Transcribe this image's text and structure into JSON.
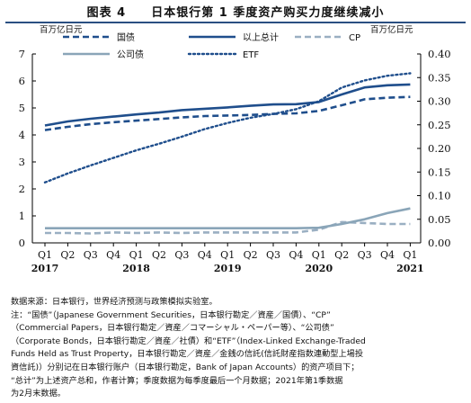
{
  "title": "图表 4　　日本银行第 1 季度资产购买力度继续减小",
  "notes": "数据来源：日本银行，世界经济预测与政策模拟实验室。\n注：“国债”（Japanese Government Securities，日本银行勘定／資産／国債）、“CP”\n（Commercial Papers，日本银行勘定／資産／コマーシャル・ペーパー等）、“公司债”\n（Corporate Bonds，日本银行勘定／資産／社債）和“ETF”（Index-Linked Exchange-Traded\nFunds Held as Trust Property，日本银行勘定／資産／金銭の信託(信託財産指数連動型上場投\n資信託)）分别记在日本银行账户（日本银行勘定，Bank of Japan Accounts）的资产项目下；\n“总计”为上述资产总和，作者计算；季度数据为每季度最后一个月数据；2021年第1季数据\n为2月末数据。",
  "chart_data": {
    "type": "line",
    "left_unit": "百万亿日元",
    "right_unit": "百万亿日元",
    "y_left": {
      "lim": [
        0,
        7
      ],
      "ticks": [
        0,
        1,
        2,
        3,
        4,
        5,
        6,
        7
      ]
    },
    "y_right": {
      "lim": [
        0,
        0.4
      ],
      "ticks": [
        "0.00",
        "0.05",
        "0.10",
        "0.15",
        "0.20",
        "0.25",
        "0.30",
        "0.35",
        "0.40"
      ]
    },
    "categories": [
      "Q1",
      "Q2",
      "Q3",
      "Q4",
      "Q1",
      "Q2",
      "Q3",
      "Q4",
      "Q1",
      "Q2",
      "Q3",
      "Q4",
      "Q1",
      "Q2",
      "Q3",
      "Q4",
      "Q1"
    ],
    "years": [
      {
        "label": "2017",
        "index": 0
      },
      {
        "label": "2018",
        "index": 4
      },
      {
        "label": "2019",
        "index": 8
      },
      {
        "label": "2020",
        "index": 12
      },
      {
        "label": "2021",
        "index": 16
      }
    ],
    "grid": false,
    "legend_position": "top",
    "series": [
      {
        "name": "国债",
        "axis": "left",
        "style": "dashed",
        "color": "#1f4e8c",
        "width": 2.6,
        "values": [
          4.18,
          4.3,
          4.4,
          4.47,
          4.53,
          4.59,
          4.65,
          4.7,
          4.72,
          4.74,
          4.78,
          4.8,
          4.89,
          5.1,
          5.32,
          5.38,
          5.41
        ]
      },
      {
        "name": "以上总计",
        "axis": "left",
        "style": "solid",
        "color": "#1f4e8c",
        "width": 2.6,
        "values": [
          4.35,
          4.5,
          4.6,
          4.68,
          4.76,
          4.83,
          4.92,
          4.97,
          5.02,
          5.08,
          5.13,
          5.14,
          5.22,
          5.5,
          5.76,
          5.84,
          5.87
        ]
      },
      {
        "name": "CP",
        "axis": "right",
        "style": "dashed",
        "color": "#9aafc2",
        "width": 2.6,
        "values": [
          0.021,
          0.021,
          0.02,
          0.022,
          0.021,
          0.022,
          0.021,
          0.022,
          0.022,
          0.022,
          0.022,
          0.022,
          0.028,
          0.044,
          0.042,
          0.04,
          0.04
        ]
      },
      {
        "name": "公司债",
        "axis": "right",
        "style": "solid",
        "color": "#8aa5b8",
        "width": 2.6,
        "values": [
          0.031,
          0.031,
          0.031,
          0.031,
          0.031,
          0.031,
          0.031,
          0.031,
          0.031,
          0.031,
          0.031,
          0.031,
          0.032,
          0.04,
          0.05,
          0.063,
          0.073
        ]
      },
      {
        "name": "ETF",
        "axis": "right",
        "style": "dotted",
        "color": "#1f4e8c",
        "width": 2.4,
        "values": [
          0.128,
          0.147,
          0.164,
          0.18,
          0.196,
          0.21,
          0.225,
          0.241,
          0.254,
          0.265,
          0.273,
          0.283,
          0.3,
          0.329,
          0.344,
          0.354,
          0.359
        ]
      }
    ]
  }
}
